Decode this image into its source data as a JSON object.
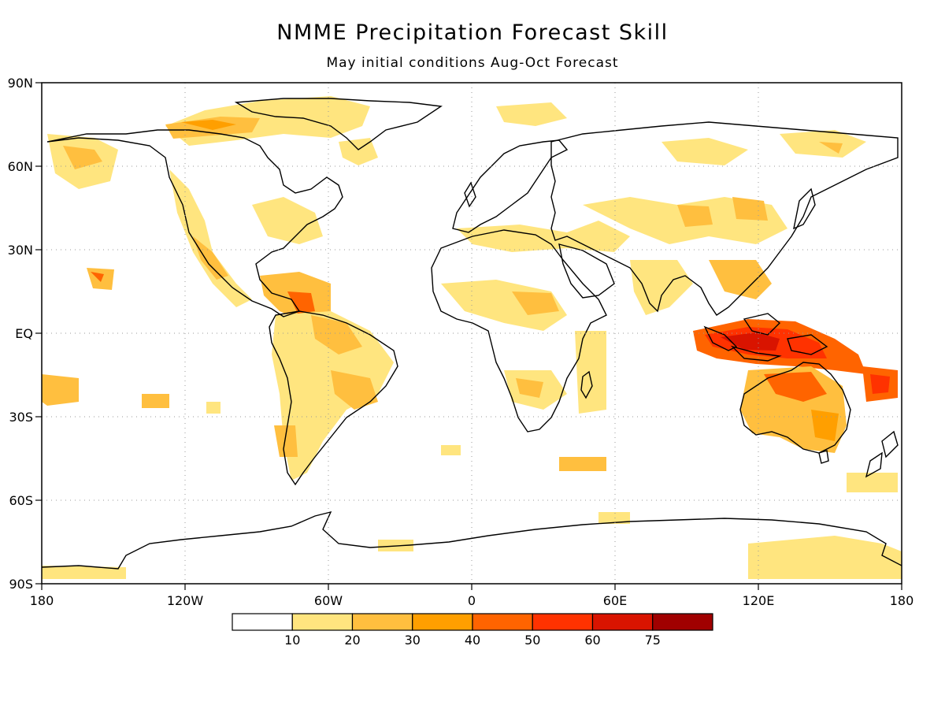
{
  "title": "NMME Precipitation Forecast Skill",
  "subtitle": "May initial conditions  Aug-Oct Forecast",
  "axes": {
    "lon_ticks": [
      "180",
      "120W",
      "60W",
      "0",
      "60E",
      "120E",
      "180"
    ],
    "lat_ticks": [
      "90N",
      "60N",
      "30N",
      "EQ",
      "30S",
      "60S",
      "90S"
    ]
  },
  "colorbar": {
    "bins": [
      {
        "color": "#ffffff",
        "label": ""
      },
      {
        "color": "#ffe57f",
        "label": "10"
      },
      {
        "color": "#ffbf3f",
        "label": "20"
      },
      {
        "color": "#ff9f00",
        "label": "30"
      },
      {
        "color": "#ff6400",
        "label": "40"
      },
      {
        "color": "#ff3200",
        "label": "50"
      },
      {
        "color": "#d91400",
        "label": "60"
      },
      {
        "color": "#a00000",
        "label": "75"
      }
    ]
  }
}
